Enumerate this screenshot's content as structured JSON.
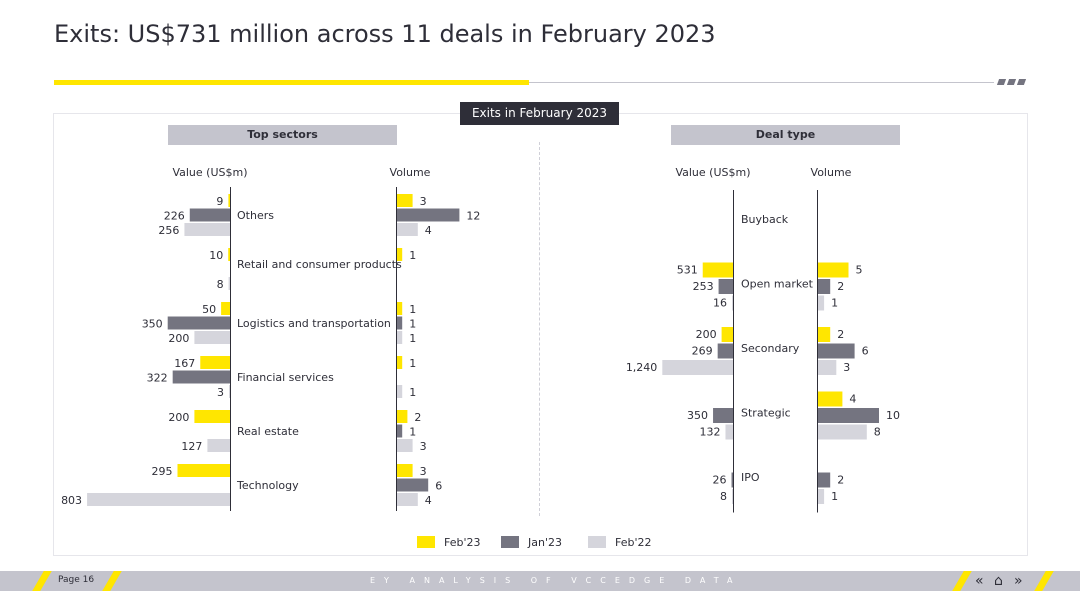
{
  "page": {
    "title": "Exits: US$731 million across 11 deals in February 2023",
    "panel_title": "Exits in February 2023",
    "footer_text": "EY ANALYSIS OF VCCEDGE DATA",
    "page_label": "Page 16",
    "nav": {
      "first": "«",
      "home": "⌂",
      "next": "»"
    }
  },
  "colors": {
    "feb23": "#ffe600",
    "jan23": "#747480",
    "feb22": "#d5d5dc",
    "dark": "#2e2e38"
  },
  "chart_data": [
    {
      "type": "bar",
      "title": "Top sectors",
      "value_label": "Value (US$m)",
      "volume_label": "Volume",
      "categories": [
        "Others",
        "Retail and consumer products",
        "Logistics and transportation",
        "Financial services",
        "Real estate",
        "Technology"
      ],
      "series": [
        {
          "name": "Feb'23",
          "values": [
            9,
            10,
            50,
            167,
            200,
            295
          ],
          "volume": [
            3,
            1,
            1,
            1,
            2,
            3
          ]
        },
        {
          "name": "Jan'23",
          "values": [
            226,
            null,
            350,
            322,
            null,
            null
          ],
          "volume": [
            12,
            null,
            1,
            null,
            1,
            6
          ]
        },
        {
          "name": "Feb'22",
          "values": [
            256,
            8,
            200,
            3,
            127,
            803
          ],
          "volume": [
            4,
            null,
            1,
            1,
            3,
            4
          ]
        }
      ]
    },
    {
      "type": "bar",
      "title": "Deal type",
      "value_label": "Value (US$m)",
      "volume_label": "Volume",
      "categories": [
        "Buyback",
        "Open market",
        "Secondary",
        "Strategic",
        "IPO"
      ],
      "series": [
        {
          "name": "Feb'23",
          "values": [
            null,
            531,
            200,
            null,
            null
          ],
          "volume": [
            null,
            5,
            2,
            4,
            null
          ]
        },
        {
          "name": "Jan'23",
          "values": [
            null,
            253,
            269,
            350,
            26
          ],
          "volume": [
            null,
            2,
            6,
            10,
            2
          ]
        },
        {
          "name": "Feb'22",
          "values": [
            null,
            16,
            1240,
            132,
            8
          ],
          "volume": [
            null,
            1,
            3,
            8,
            1
          ]
        }
      ]
    }
  ],
  "legend": [
    "Feb'23",
    "Jan'23",
    "Feb'22"
  ]
}
